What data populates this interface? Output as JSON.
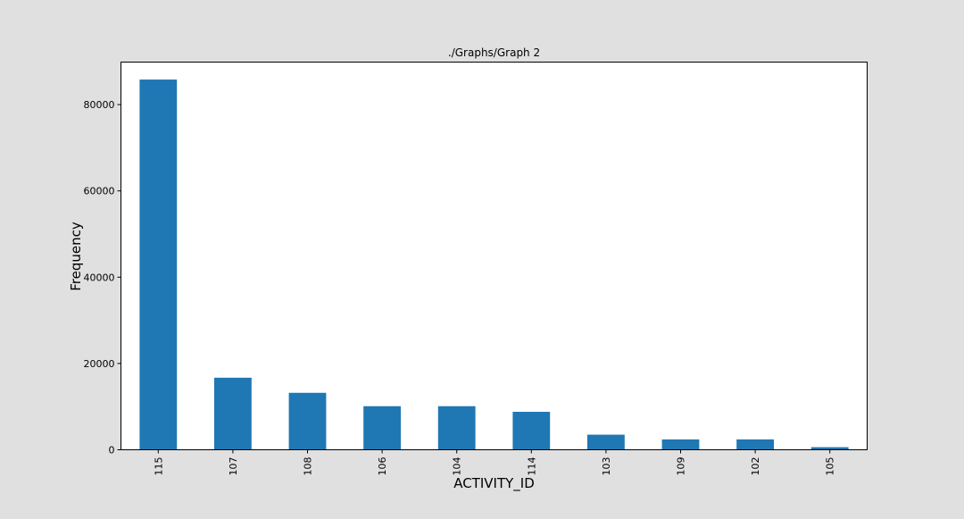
{
  "chart_data": {
    "type": "bar",
    "title": "./Graphs/Graph 2",
    "xlabel": "ACTIVITY_ID",
    "ylabel": "Frequency",
    "categories": [
      "115",
      "107",
      "108",
      "106",
      "104",
      "114",
      "103",
      "109",
      "102",
      "105"
    ],
    "values": [
      85800,
      16700,
      13200,
      10100,
      10100,
      8800,
      3500,
      2400,
      2400,
      600
    ],
    "ylim": [
      0,
      89850
    ],
    "yticks": [
      0,
      20000,
      40000,
      60000,
      80000
    ],
    "ytick_labels": [
      "0",
      "20000",
      "40000",
      "60000",
      "80000"
    ],
    "grid": false,
    "legend": "none",
    "bar_color": "#1f77b4",
    "figure_background": "#e0e0e0",
    "plot_background": "#ffffff"
  }
}
